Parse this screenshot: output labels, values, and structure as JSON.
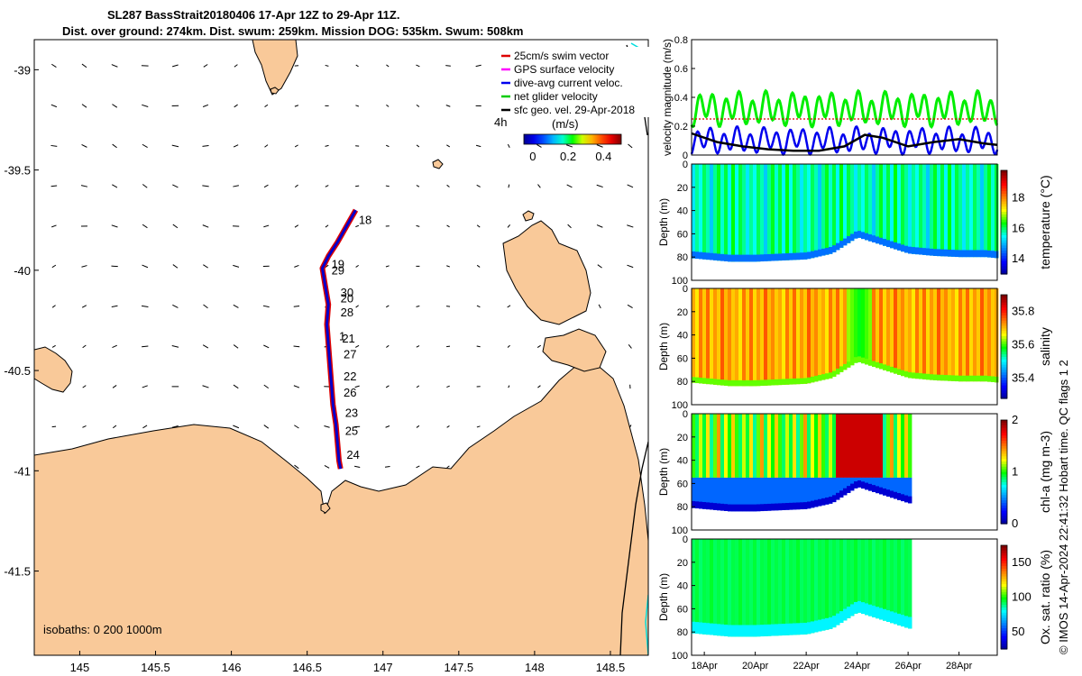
{
  "figure": {
    "title_line1": "SL287 BassStrait20180406 17-Apr 12Z to 29-Apr 11Z.",
    "title_line2": "Dist. over ground: 274km. Dist. swum: 259km. Mission DOG: 535km. Swum: 508km",
    "credit": "© IMOS 14-Apr-2024 22:41:32 Hobart time. QC flags 1  2",
    "colors": {
      "land": "#f9c999",
      "glider_track": "#0000cc",
      "glider_edge": "#dd0000",
      "net": "#00dd00",
      "coast": "#000000",
      "isobath_cyan": "#00dddd"
    }
  },
  "chart_data": [
    {
      "type": "map",
      "name": "track-map",
      "xlim": [
        144.7,
        148.75
      ],
      "ylim": [
        -41.92,
        -38.85
      ],
      "xticks": [
        "145",
        "145.5",
        "146",
        "146.5",
        "147",
        "147.5",
        "148",
        "148.5"
      ],
      "xtick_values": [
        145,
        145.5,
        146,
        146.5,
        147,
        147.5,
        148,
        148.5
      ],
      "yticks": [
        "-39",
        "-39.5",
        "-40",
        "-40.5",
        "-41",
        "-41.5"
      ],
      "ytick_values": [
        -39,
        -39.5,
        -40,
        -40.5,
        -41,
        -41.5
      ],
      "legend": {
        "entries": [
          {
            "label": "25cm/s swim vector",
            "color": "#dd0000"
          },
          {
            "label": "GPS surface velocity",
            "color": "#ff00ff"
          },
          {
            "label": "dive-avg current veloc.",
            "color": "#0000ee"
          },
          {
            "label": "net glider velocity",
            "color": "#00cc00"
          },
          {
            "label": "sfc geo. vel. 29-Apr-2018",
            "color": "#000000"
          }
        ],
        "scale_label": "4h",
        "colorbar_label": "(m/s)",
        "colorbar_ticks": [
          "0",
          "0.2",
          "0.4"
        ],
        "colorbar_tick_values": [
          0,
          0.2,
          0.4
        ],
        "colorbar_range": [
          -0.05,
          0.5
        ],
        "placement": "top-right"
      },
      "isobaths_label": "isobaths: 0   200  1000m",
      "track": [
        {
          "lon": 146.82,
          "lat": -39.7
        },
        {
          "lon": 146.76,
          "lat": -39.78
        },
        {
          "lon": 146.7,
          "lat": -39.86
        },
        {
          "lon": 146.64,
          "lat": -39.93
        },
        {
          "lon": 146.6,
          "lat": -39.99
        },
        {
          "lon": 146.62,
          "lat": -40.08
        },
        {
          "lon": 146.64,
          "lat": -40.17
        },
        {
          "lon": 146.63,
          "lat": -40.27
        },
        {
          "lon": 146.64,
          "lat": -40.37
        },
        {
          "lon": 146.65,
          "lat": -40.47
        },
        {
          "lon": 146.66,
          "lat": -40.57
        },
        {
          "lon": 146.67,
          "lat": -40.67
        },
        {
          "lon": 146.69,
          "lat": -40.77
        },
        {
          "lon": 146.7,
          "lat": -40.86
        },
        {
          "lon": 146.71,
          "lat": -40.95
        },
        {
          "lon": 146.72,
          "lat": -40.99
        }
      ],
      "day_labels": [
        {
          "text": "18",
          "lon": 146.84,
          "lat": -39.77
        },
        {
          "text": "19",
          "lon": 146.66,
          "lat": -39.99
        },
        {
          "text": "29",
          "lon": 146.66,
          "lat": -40.02
        },
        {
          "text": "30",
          "lon": 146.72,
          "lat": -40.13
        },
        {
          "text": "20",
          "lon": 146.72,
          "lat": -40.16
        },
        {
          "text": "28",
          "lon": 146.72,
          "lat": -40.23
        },
        {
          "text": "1",
          "lon": 146.71,
          "lat": -40.35
        },
        {
          "text": "21",
          "lon": 146.73,
          "lat": -40.36
        },
        {
          "text": "27",
          "lon": 146.74,
          "lat": -40.44
        },
        {
          "text": "22",
          "lon": 146.74,
          "lat": -40.55
        },
        {
          "text": "26",
          "lon": 146.74,
          "lat": -40.63
        },
        {
          "text": "23",
          "lon": 146.75,
          "lat": -40.73
        },
        {
          "text": "25",
          "lon": 146.75,
          "lat": -40.82
        },
        {
          "text": "24",
          "lon": 146.76,
          "lat": -40.94
        }
      ]
    },
    {
      "type": "line",
      "name": "velocity-panel",
      "ylabel": "velocity magnitude (m/s)",
      "yticks": [
        "0",
        "0.2",
        "0.4",
        "0.6",
        "0.8"
      ],
      "ytick_values": [
        0,
        0.2,
        0.4,
        0.6,
        0.8
      ],
      "ylim": [
        0,
        0.8
      ],
      "xlim": [
        17.5,
        29.5
      ],
      "series": [
        {
          "color": "#00ee00",
          "mean": 0.32,
          "amp": 0.09,
          "period": 0.52
        },
        {
          "color": "#0000ee",
          "mean": 0.1,
          "amp": 0.07,
          "period": 0.52
        },
        {
          "color": "#dd0000",
          "constant": 0.25
        },
        {
          "color": "#000000",
          "x": [
            17.5,
            18.5,
            19.5,
            20.5,
            21.5,
            22.5,
            23.5,
            24.3,
            25,
            26,
            27,
            28,
            29,
            29.5
          ],
          "y": [
            0.15,
            0.09,
            0.06,
            0.04,
            0.03,
            0.03,
            0.06,
            0.14,
            0.12,
            0.06,
            0.09,
            0.11,
            0.08,
            0.07
          ]
        }
      ]
    },
    {
      "type": "heatmap",
      "name": "temperature-panel",
      "ylabel": "Depth (m)",
      "clabel": "temperature (°C)",
      "yticks": [
        "0",
        "20",
        "40",
        "60",
        "80",
        "100"
      ],
      "ytick_values": [
        0,
        20,
        40,
        60,
        80,
        100
      ],
      "ylim": [
        0,
        100
      ],
      "clim": [
        13,
        19.8
      ],
      "cticks": [
        "14",
        "16",
        "18"
      ],
      "ctick_values": [
        14,
        16,
        18
      ],
      "xlim": [
        17.5,
        29.5
      ],
      "data_end": 29.5,
      "value_pattern": [
        15.4,
        15.9,
        15.6,
        16.1,
        15.8,
        15.2,
        15.9,
        16.3,
        15.7,
        16.2,
        15.5,
        16.4,
        15.6,
        16.2,
        15.9
      ]
    },
    {
      "type": "heatmap",
      "name": "salinity-panel",
      "ylabel": "Depth (m)",
      "clabel": "salinity",
      "yticks": [
        "0",
        "20",
        "40",
        "60",
        "80",
        "100"
      ],
      "ytick_values": [
        0,
        20,
        40,
        60,
        80,
        100
      ],
      "ylim": [
        0,
        100
      ],
      "clim": [
        35.28,
        35.9
      ],
      "cticks": [
        "35.4",
        "35.6",
        "35.8"
      ],
      "ctick_values": [
        35.4,
        35.6,
        35.8
      ],
      "xlim": [
        17.5,
        29.5
      ],
      "data_end": 29.5,
      "value_pattern": [
        35.72,
        35.68,
        35.75,
        35.7,
        35.76,
        35.69,
        35.73,
        35.7,
        35.77,
        35.71,
        35.74,
        35.7
      ]
    },
    {
      "type": "heatmap",
      "name": "chla-panel",
      "ylabel": "Depth (m)",
      "clabel": "chl-a (mg m-3)",
      "yticks": [
        "0",
        "20",
        "40",
        "60",
        "80",
        "100"
      ],
      "ytick_values": [
        0,
        20,
        40,
        60,
        80,
        100
      ],
      "ylim": [
        0,
        100
      ],
      "clim": [
        0,
        2
      ],
      "cticks": [
        "0",
        "1",
        "2"
      ],
      "ctick_values": [
        0,
        1,
        2
      ],
      "xlim": [
        17.5,
        29.5
      ],
      "data_end": 26.1,
      "value_pattern": [
        1.05,
        0.9,
        1.2,
        0.95,
        1.3,
        0.85,
        1.1,
        1.45,
        0.9,
        1.25,
        1.0,
        1.35
      ]
    },
    {
      "type": "heatmap",
      "name": "oxygen-panel",
      "ylabel": "Depth (m)",
      "clabel": "Ox. sat. ratio (%)",
      "yticks": [
        "0",
        "20",
        "40",
        "60",
        "80",
        "100"
      ],
      "ytick_values": [
        0,
        20,
        40,
        60,
        80,
        100
      ],
      "ylim": [
        0,
        100
      ],
      "clim": [
        25,
        175
      ],
      "cticks": [
        "50",
        "100",
        "150"
      ],
      "ctick_values": [
        50,
        100,
        150
      ],
      "xlim": [
        17.5,
        29.5
      ],
      "data_end": 26.1,
      "value_pattern": [
        93,
        96,
        92,
        95,
        94,
        97,
        93,
        95
      ]
    }
  ],
  "time_axis": {
    "xticks": [
      "18Apr",
      "20Apr",
      "22Apr",
      "24Apr",
      "26Apr",
      "28Apr"
    ],
    "xtick_values": [
      18,
      20,
      22,
      24,
      26,
      28
    ],
    "seabed_days": [
      17.5,
      19,
      20,
      21,
      22,
      23,
      24,
      25,
      26,
      27,
      28,
      29,
      29.5
    ],
    "seabed_depth_m": [
      81,
      84,
      84,
      83,
      82,
      77,
      63,
      70,
      77,
      79,
      80,
      80,
      81
    ]
  }
}
